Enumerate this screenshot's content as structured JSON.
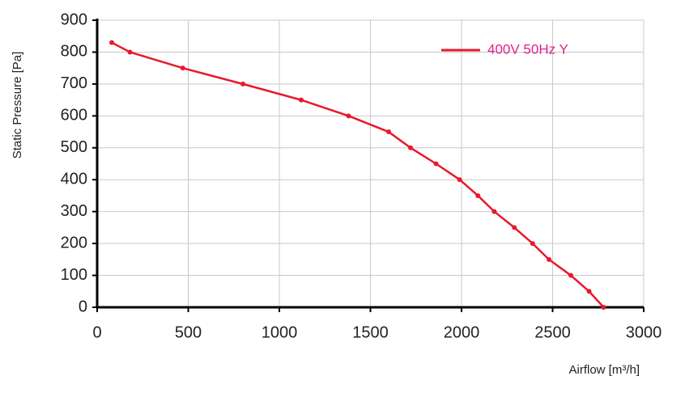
{
  "chart_data": {
    "type": "line",
    "y_label": "Static Pressure [Pa]",
    "x_label": "Airflow [m³/h]",
    "series": [
      {
        "name": "400V 50Hz Y",
        "color": "#e8192c",
        "x": [
          80,
          180,
          470,
          800,
          1120,
          1380,
          1600,
          1720,
          1860,
          1990,
          2090,
          2180,
          2290,
          2390,
          2480,
          2600,
          2700,
          2780
        ],
        "values": [
          830,
          800,
          750,
          700,
          650,
          600,
          550,
          500,
          450,
          400,
          350,
          300,
          250,
          200,
          150,
          100,
          50,
          0
        ]
      }
    ],
    "xlim": [
      0,
      3000
    ],
    "xticks": [
      0,
      500,
      1000,
      1500,
      2000,
      2500,
      3000
    ],
    "ylim": [
      0,
      900
    ],
    "yticks": [
      0,
      100,
      200,
      300,
      400,
      500,
      600,
      700,
      800,
      900
    ],
    "grid": true,
    "legend": "top-right"
  }
}
